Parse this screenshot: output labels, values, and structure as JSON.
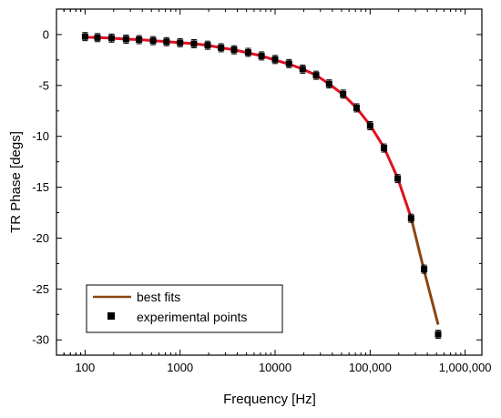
{
  "chart_data": {
    "type": "scatter",
    "xlabel": "Frequency [Hz]",
    "ylabel": "TR Phase [degs]",
    "x_scale": "log",
    "xlim": [
      50,
      1500000
    ],
    "ylim": [
      -31.5,
      2.5
    ],
    "x_ticks": [
      100,
      1000,
      10000,
      100000,
      1000000
    ],
    "x_tick_labels": [
      "100",
      "1000",
      "10000",
      "100,000",
      "1,000,000"
    ],
    "y_ticks": [
      0,
      -5,
      -10,
      -15,
      -20,
      -25,
      -30
    ],
    "y_tick_labels": [
      "0",
      "-5",
      "-10",
      "-15",
      "-20",
      "-25",
      "-30"
    ],
    "grid": false,
    "legend_position": "bottom-left",
    "series": [
      {
        "name": "best fits",
        "style": "line",
        "color": "#e01020",
        "segment_color": "#8b4513",
        "x": [
          100,
          135,
          190,
          270,
          370,
          520,
          720,
          1000,
          1400,
          1950,
          2700,
          3700,
          5200,
          7200,
          10000,
          14000,
          19500,
          27000,
          37000,
          52000,
          72000,
          100000,
          140000,
          195000,
          270000,
          370000,
          520000
        ],
        "y": [
          -0.25,
          -0.3,
          -0.35,
          -0.45,
          -0.5,
          -0.6,
          -0.7,
          -0.8,
          -0.9,
          -1.05,
          -1.3,
          -1.5,
          -1.8,
          -2.1,
          -2.5,
          -2.9,
          -3.4,
          -4.0,
          -4.85,
          -5.9,
          -7.2,
          -8.9,
          -11.1,
          -14.1,
          -18.0,
          -23.2,
          -28.5
        ]
      },
      {
        "name": "experimental points",
        "style": "markers",
        "color": "#000000",
        "x": [
          100,
          135,
          190,
          270,
          370,
          520,
          720,
          1000,
          1400,
          1950,
          2700,
          3700,
          5200,
          7200,
          10000,
          14000,
          19500,
          27000,
          37000,
          52000,
          72000,
          100000,
          140000,
          195000,
          270000,
          370000,
          520000
        ],
        "y": [
          -0.2,
          -0.3,
          -0.35,
          -0.45,
          -0.5,
          -0.6,
          -0.7,
          -0.8,
          -0.9,
          -1.05,
          -1.3,
          -1.5,
          -1.75,
          -2.1,
          -2.45,
          -2.85,
          -3.4,
          -4.0,
          -4.85,
          -5.85,
          -7.2,
          -8.95,
          -11.15,
          -14.15,
          -18.05,
          -23.05,
          -29.45
        ],
        "error": 0.4
      }
    ]
  }
}
